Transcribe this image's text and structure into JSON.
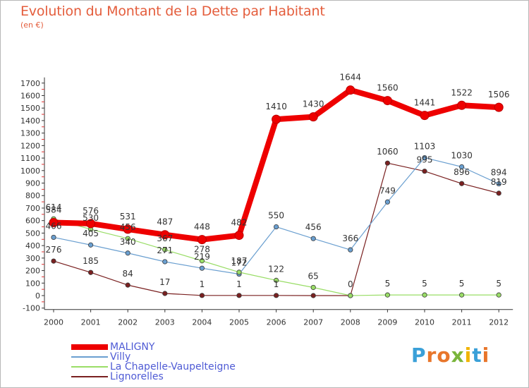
{
  "title": "Evolution du Montant de la Dette par Habitant",
  "unit_label": "(en €)",
  "brand": {
    "letters": [
      "P",
      "r",
      "o",
      "x",
      "i",
      "t",
      "i"
    ],
    "colors": [
      "#3aa0d8",
      "#e8762b",
      "#e8762b",
      "#79b53b",
      "#f0b400",
      "#3aa0d8",
      "#e8762b"
    ]
  },
  "chart_data": {
    "type": "line",
    "title": "Evolution du Montant de la Dette par Habitant",
    "ylabel": "(en €)",
    "xlabel": "",
    "x": [
      "2000",
      "2001",
      "2002",
      "2003",
      "2004",
      "2005",
      "2006",
      "2007",
      "2008",
      "2009",
      "2010",
      "2011",
      "2012"
    ],
    "y_ticks": [
      -100,
      0,
      100,
      200,
      300,
      400,
      500,
      600,
      700,
      800,
      900,
      1000,
      1100,
      1200,
      1300,
      1400,
      1500,
      1600,
      1700
    ],
    "ylim": [
      -100,
      1700
    ],
    "grid": false,
    "legend_position": "bottom-left",
    "series": [
      {
        "name": "MALIGNY",
        "color": "#ee0000",
        "values": [
          584,
          576,
          531,
          487,
          448,
          482,
          1410,
          1430,
          1644,
          1560,
          1441,
          1522,
          1506
        ]
      },
      {
        "name": "Villy",
        "color": "#6a9fd0",
        "values": [
          466,
          405,
          340,
          271,
          219,
          172,
          550,
          456,
          366,
          749,
          1103,
          1030,
          894
        ]
      },
      {
        "name": "La Chapelle-Vaupelteigne",
        "color": "#99dd66",
        "values": [
          614,
          530,
          456,
          367,
          278,
          187,
          122,
          65,
          0,
          5,
          5,
          5,
          5
        ]
      },
      {
        "name": "Lignorelles",
        "color": "#7a2020",
        "values": [
          276,
          185,
          84,
          17,
          1,
          1,
          1,
          0,
          0,
          1060,
          995,
          896,
          819
        ]
      }
    ],
    "point_labels": [
      [
        "584",
        "576",
        "531",
        "487",
        "448",
        "482",
        "1410",
        "1430",
        "1644",
        "1560",
        "1441",
        "1522",
        "1506"
      ],
      [
        "466",
        "405",
        "340",
        "271",
        "219",
        "172",
        "550",
        "456",
        "366",
        "749",
        "1103",
        "1030",
        "894"
      ],
      [
        "614",
        "530",
        "456",
        "367",
        "278",
        "187",
        "122",
        "65",
        "",
        "5",
        "5",
        "5",
        "5"
      ],
      [
        "276",
        "185",
        "84",
        "17",
        "1",
        "1",
        "1",
        "",
        "0",
        "1060",
        "995",
        "896",
        "819"
      ]
    ]
  }
}
